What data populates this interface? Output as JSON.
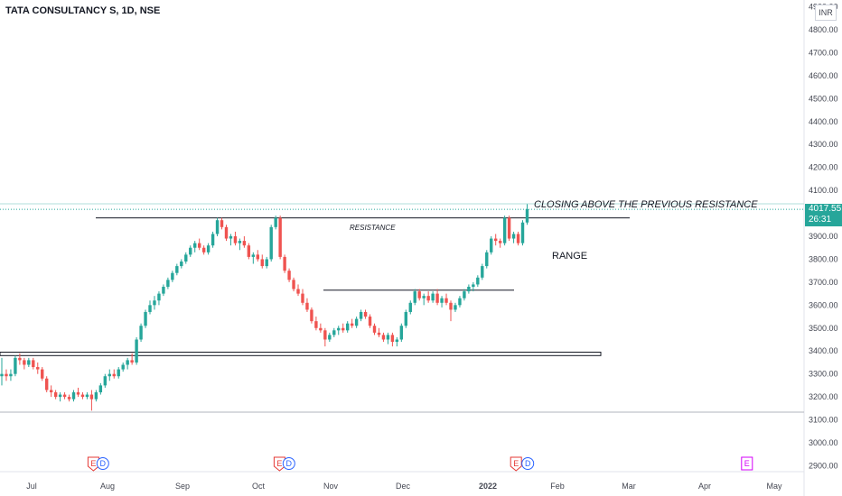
{
  "header": {
    "symbol_title": "TATA CONSULTANCY S, 1D, NSE",
    "currency": "INR"
  },
  "colors": {
    "up": "#26a69a",
    "down": "#ef5350",
    "text": "#131722",
    "axis_text": "#434651",
    "grid": "#e0e3eb"
  },
  "price_tag": {
    "price": "4017.55",
    "countdown": "26:31"
  },
  "annotations": {
    "headline": "CLOSING ABOVE THE PREVIOUS RESISTANCE",
    "resistance": "RESISTANCE",
    "range": "RANGE"
  },
  "event_markers": [
    {
      "month": "Aug",
      "day": -6,
      "letter": "E",
      "kind": "earnings"
    },
    {
      "month": "Aug",
      "day": -2,
      "letter": "D",
      "kind": "dividend"
    },
    {
      "month": "Oct",
      "day": 9,
      "letter": "E",
      "kind": "earnings"
    },
    {
      "month": "Oct",
      "day": 13,
      "letter": "D",
      "kind": "dividend"
    },
    {
      "month": "Jan",
      "day": 12,
      "letter": "E",
      "kind": "earnings"
    },
    {
      "month": "Jan",
      "day": 17,
      "letter": "D",
      "kind": "dividend"
    },
    {
      "month": "Apr",
      "day": 18,
      "letter": "E",
      "kind": "earnings"
    }
  ],
  "chart_data": {
    "type": "candlestick",
    "title": "TATA CONSULTANCY S, 1D, NSE",
    "currency": "INR",
    "ylim": [
      2850,
      5000
    ],
    "y_ticks": [
      "2900.00",
      "3000.00",
      "3100.00",
      "3200.00",
      "3300.00",
      "3400.00",
      "3500.00",
      "3600.00",
      "3700.00",
      "3800.00",
      "3900.00",
      "4000.00",
      "4100.00",
      "4200.00",
      "4300.00",
      "4400.00",
      "4500.00",
      "4600.00",
      "4700.00",
      "4800.00",
      "4900.00"
    ],
    "x_ticks": [
      "Jul",
      "Aug",
      "Sep",
      "Oct",
      "Nov",
      "Dec",
      "2022",
      "Feb",
      "Mar",
      "Apr",
      "May"
    ],
    "last_price": 4017.55,
    "levels": [
      {
        "label": "RESISTANCE",
        "price": 3980
      },
      {
        "label": "RANGE",
        "price": 3665
      },
      {
        "label": "",
        "price": 3395
      },
      {
        "label": "",
        "price": 3380
      }
    ],
    "candles": [
      [
        3290,
        3370,
        3250,
        3300
      ],
      [
        3300,
        3320,
        3270,
        3290
      ],
      [
        3290,
        3320,
        3270,
        3300
      ],
      [
        3300,
        3380,
        3290,
        3370
      ],
      [
        3370,
        3390,
        3340,
        3360
      ],
      [
        3360,
        3370,
        3320,
        3340
      ],
      [
        3340,
        3370,
        3330,
        3360
      ],
      [
        3360,
        3370,
        3320,
        3330
      ],
      [
        3330,
        3350,
        3300,
        3320
      ],
      [
        3320,
        3330,
        3270,
        3280
      ],
      [
        3280,
        3290,
        3220,
        3230
      ],
      [
        3230,
        3250,
        3200,
        3220
      ],
      [
        3220,
        3230,
        3190,
        3200
      ],
      [
        3200,
        3220,
        3180,
        3210
      ],
      [
        3210,
        3220,
        3190,
        3200
      ],
      [
        3200,
        3210,
        3180,
        3190
      ],
      [
        3190,
        3230,
        3180,
        3220
      ],
      [
        3220,
        3240,
        3200,
        3210
      ],
      [
        3210,
        3220,
        3190,
        3200
      ],
      [
        3200,
        3220,
        3190,
        3210
      ],
      [
        3210,
        3230,
        3140,
        3190
      ],
      [
        3190,
        3230,
        3180,
        3220
      ],
      [
        3220,
        3260,
        3210,
        3250
      ],
      [
        3250,
        3300,
        3240,
        3290
      ],
      [
        3290,
        3320,
        3270,
        3300
      ],
      [
        3300,
        3320,
        3280,
        3290
      ],
      [
        3290,
        3330,
        3280,
        3320
      ],
      [
        3320,
        3350,
        3310,
        3340
      ],
      [
        3340,
        3370,
        3320,
        3360
      ],
      [
        3360,
        3390,
        3340,
        3350
      ],
      [
        3350,
        3460,
        3340,
        3450
      ],
      [
        3450,
        3520,
        3440,
        3510
      ],
      [
        3510,
        3580,
        3500,
        3570
      ],
      [
        3570,
        3620,
        3560,
        3600
      ],
      [
        3600,
        3640,
        3580,
        3620
      ],
      [
        3620,
        3660,
        3600,
        3650
      ],
      [
        3650,
        3690,
        3640,
        3680
      ],
      [
        3680,
        3720,
        3670,
        3710
      ],
      [
        3710,
        3750,
        3700,
        3740
      ],
      [
        3740,
        3780,
        3730,
        3770
      ],
      [
        3770,
        3800,
        3760,
        3790
      ],
      [
        3790,
        3830,
        3780,
        3820
      ],
      [
        3820,
        3860,
        3810,
        3850
      ],
      [
        3850,
        3880,
        3830,
        3870
      ],
      [
        3870,
        3890,
        3840,
        3850
      ],
      [
        3850,
        3860,
        3820,
        3830
      ],
      [
        3830,
        3870,
        3820,
        3860
      ],
      [
        3860,
        3920,
        3850,
        3910
      ],
      [
        3910,
        3980,
        3900,
        3970
      ],
      [
        3970,
        3980,
        3930,
        3940
      ],
      [
        3940,
        3950,
        3880,
        3890
      ],
      [
        3890,
        3910,
        3860,
        3900
      ],
      [
        3900,
        3920,
        3860,
        3870
      ],
      [
        3870,
        3890,
        3840,
        3880
      ],
      [
        3880,
        3900,
        3850,
        3860
      ],
      [
        3860,
        3870,
        3800,
        3810
      ],
      [
        3810,
        3830,
        3780,
        3820
      ],
      [
        3820,
        3840,
        3790,
        3800
      ],
      [
        3800,
        3820,
        3760,
        3770
      ],
      [
        3770,
        3810,
        3760,
        3800
      ],
      [
        3800,
        3950,
        3790,
        3940
      ],
      [
        3940,
        3990,
        3930,
        3980
      ],
      [
        3980,
        3990,
        3800,
        3810
      ],
      [
        3810,
        3820,
        3740,
        3750
      ],
      [
        3750,
        3760,
        3700,
        3710
      ],
      [
        3710,
        3720,
        3660,
        3670
      ],
      [
        3670,
        3690,
        3640,
        3650
      ],
      [
        3650,
        3670,
        3600,
        3610
      ],
      [
        3610,
        3630,
        3570,
        3580
      ],
      [
        3580,
        3590,
        3520,
        3530
      ],
      [
        3530,
        3550,
        3490,
        3500
      ],
      [
        3500,
        3520,
        3480,
        3490
      ],
      [
        3490,
        3500,
        3420,
        3450
      ],
      [
        3450,
        3480,
        3440,
        3470
      ],
      [
        3470,
        3500,
        3460,
        3490
      ],
      [
        3490,
        3510,
        3470,
        3500
      ],
      [
        3500,
        3520,
        3480,
        3490
      ],
      [
        3490,
        3530,
        3480,
        3520
      ],
      [
        3520,
        3540,
        3500,
        3510
      ],
      [
        3510,
        3550,
        3500,
        3540
      ],
      [
        3540,
        3580,
        3530,
        3570
      ],
      [
        3570,
        3580,
        3540,
        3550
      ],
      [
        3550,
        3560,
        3500,
        3510
      ],
      [
        3510,
        3520,
        3470,
        3480
      ],
      [
        3480,
        3500,
        3460,
        3470
      ],
      [
        3470,
        3480,
        3440,
        3450
      ],
      [
        3450,
        3480,
        3430,
        3470
      ],
      [
        3470,
        3480,
        3420,
        3440
      ],
      [
        3440,
        3460,
        3420,
        3450
      ],
      [
        3450,
        3520,
        3440,
        3510
      ],
      [
        3510,
        3580,
        3500,
        3570
      ],
      [
        3570,
        3620,
        3560,
        3610
      ],
      [
        3610,
        3670,
        3600,
        3660
      ],
      [
        3660,
        3670,
        3620,
        3630
      ],
      [
        3630,
        3650,
        3600,
        3640
      ],
      [
        3640,
        3660,
        3610,
        3620
      ],
      [
        3620,
        3660,
        3610,
        3650
      ],
      [
        3650,
        3670,
        3600,
        3610
      ],
      [
        3610,
        3640,
        3590,
        3630
      ],
      [
        3630,
        3650,
        3600,
        3610
      ],
      [
        3610,
        3620,
        3530,
        3580
      ],
      [
        3580,
        3610,
        3570,
        3600
      ],
      [
        3600,
        3640,
        3590,
        3630
      ],
      [
        3630,
        3670,
        3620,
        3660
      ],
      [
        3660,
        3690,
        3650,
        3680
      ],
      [
        3680,
        3700,
        3660,
        3690
      ],
      [
        3690,
        3730,
        3680,
        3720
      ],
      [
        3720,
        3780,
        3710,
        3770
      ],
      [
        3770,
        3840,
        3760,
        3830
      ],
      [
        3830,
        3900,
        3820,
        3890
      ],
      [
        3890,
        3910,
        3860,
        3880
      ],
      [
        3880,
        3890,
        3850,
        3870
      ],
      [
        3870,
        3990,
        3860,
        3980
      ],
      [
        3980,
        3990,
        3880,
        3890
      ],
      [
        3890,
        3920,
        3870,
        3910
      ],
      [
        3910,
        3920,
        3860,
        3870
      ],
      [
        3870,
        3970,
        3860,
        3960
      ],
      [
        3960,
        4040,
        3950,
        4017.55
      ]
    ]
  }
}
